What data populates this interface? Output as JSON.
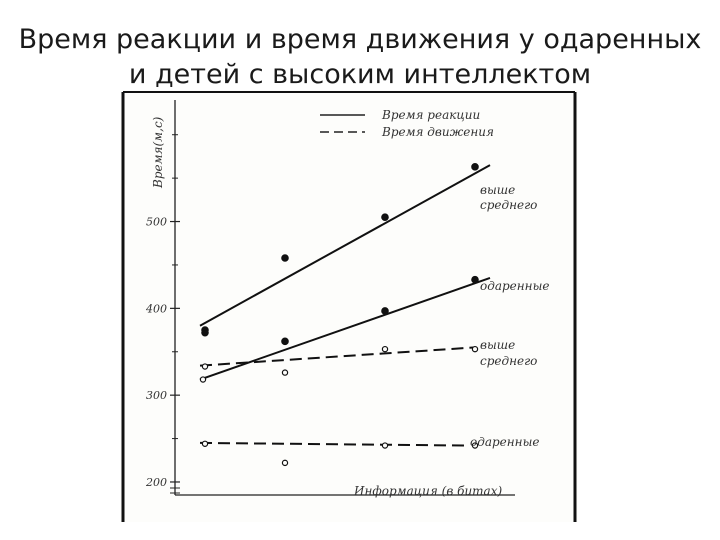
{
  "slide": {
    "title_line1": "Время реакции и время движения у одаренных",
    "title_line2": "и детей с высоким интеллектом"
  },
  "chart_data": {
    "type": "line",
    "ylabel": "Время(м,с)",
    "xlabel": "Информация (в битах)",
    "ylim": [
      185,
      640
    ],
    "y_ticks": [
      200,
      300,
      400,
      500
    ],
    "x_points": 4,
    "legend": {
      "placement": "top-right",
      "entries": [
        {
          "label": "Время реакции",
          "style": "solid"
        },
        {
          "label": "Время движения",
          "style": "dashed"
        }
      ]
    },
    "series": [
      {
        "name": "выше среднего",
        "measure": "Время реакции",
        "style": "solid",
        "marker": "filled",
        "values": [
          375,
          458,
          505,
          563
        ],
        "fit": [
          380,
          565
        ]
      },
      {
        "name": "одаренные",
        "measure": "Время реакции",
        "style": "solid",
        "marker": "filled",
        "values": [
          372,
          362,
          397,
          433
        ],
        "fit": [
          318,
          435
        ]
      },
      {
        "name": "выше среднего",
        "measure": "Время движения",
        "style": "dashed",
        "marker": "open",
        "values": [
          333,
          326,
          353,
          353
        ],
        "fit": [
          334,
          355
        ]
      },
      {
        "name": "одаренные",
        "measure": "Время движения",
        "style": "dashed",
        "marker": "open",
        "values": [
          244,
          222,
          242,
          242
        ],
        "fit": [
          245,
          242
        ]
      },
      {
        "name": "",
        "measure": "Время реакции",
        "style": "none",
        "marker": "open",
        "values": [
          318
        ],
        "note": "второй отмеченный пункт у начала линии «одаренные»"
      }
    ],
    "series_labels": [
      {
        "text_line1": "выше",
        "text_line2": "среднего"
      },
      {
        "text_line1": "одаренные",
        "text_line2": ""
      },
      {
        "text_line1": "выше",
        "text_line2": "среднего"
      },
      {
        "text_line1": "одаренные",
        "text_line2": ""
      }
    ]
  }
}
